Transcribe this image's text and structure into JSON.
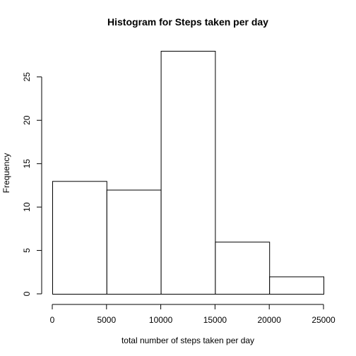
{
  "chart_data": {
    "type": "bar",
    "title": "Histogram for Steps taken per day",
    "xlabel": "total number of steps taken per day",
    "ylabel": "Frequency",
    "bins": [
      {
        "from": 0,
        "to": 5000,
        "count": 13
      },
      {
        "from": 5000,
        "to": 10000,
        "count": 12
      },
      {
        "from": 10000,
        "to": 15000,
        "count": 28
      },
      {
        "from": 15000,
        "to": 20000,
        "count": 6
      },
      {
        "from": 20000,
        "to": 25000,
        "count": 2
      }
    ],
    "xticks": [
      0,
      5000,
      10000,
      15000,
      20000,
      25000
    ],
    "yticks": [
      0,
      5,
      10,
      15,
      20,
      25
    ],
    "xlim": [
      0,
      25000
    ],
    "ylim": [
      0,
      28
    ],
    "grid": false,
    "bar_fill": "#ffffff",
    "bar_stroke": "#000000"
  }
}
